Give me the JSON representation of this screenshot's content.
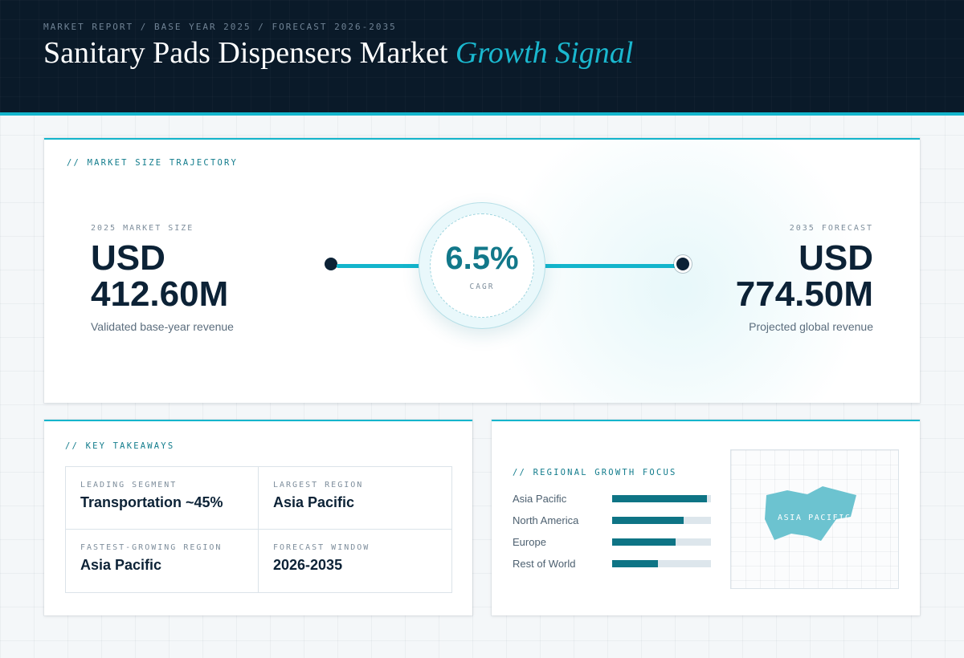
{
  "header": {
    "kicker": "MARKET REPORT / BASE YEAR 2025 / FORECAST 2026-2035",
    "title_main": "Sanitary Pads Dispensers Market",
    "title_accent": "Growth Signal"
  },
  "trajectory": {
    "section_label": "// MARKET SIZE TRAJECTORY",
    "base": {
      "label": "2025 MARKET SIZE",
      "currency": "USD",
      "amount": "412.60M",
      "caption": "Validated base-year revenue"
    },
    "cagr": {
      "value": "6.5%",
      "label": "CAGR"
    },
    "forecast": {
      "label": "2035 FORECAST",
      "currency": "USD",
      "amount": "774.50M",
      "caption": "Projected global revenue"
    }
  },
  "takeaways": {
    "section_label": "// KEY TAKEAWAYS",
    "items": [
      {
        "label": "LEADING SEGMENT",
        "value": "Transportation ~45%"
      },
      {
        "label": "LARGEST REGION",
        "value": "Asia Pacific"
      },
      {
        "label": "FASTEST-GROWING REGION",
        "value": "Asia Pacific"
      },
      {
        "label": "FORECAST WINDOW",
        "value": "2026-2035"
      }
    ]
  },
  "regional": {
    "section_label": "// REGIONAL GROWTH FOCUS",
    "bars": [
      {
        "name": "Asia Pacific",
        "value": 0.96
      },
      {
        "name": "North America",
        "value": 0.72
      },
      {
        "name": "Europe",
        "value": 0.64
      },
      {
        "name": "Rest of World",
        "value": 0.46
      }
    ],
    "map_label": "ASIA PACIFIC",
    "colors": {
      "bar": "#0e7485",
      "track": "#dde6ec",
      "map_fill": "#6cc3d0"
    }
  }
}
